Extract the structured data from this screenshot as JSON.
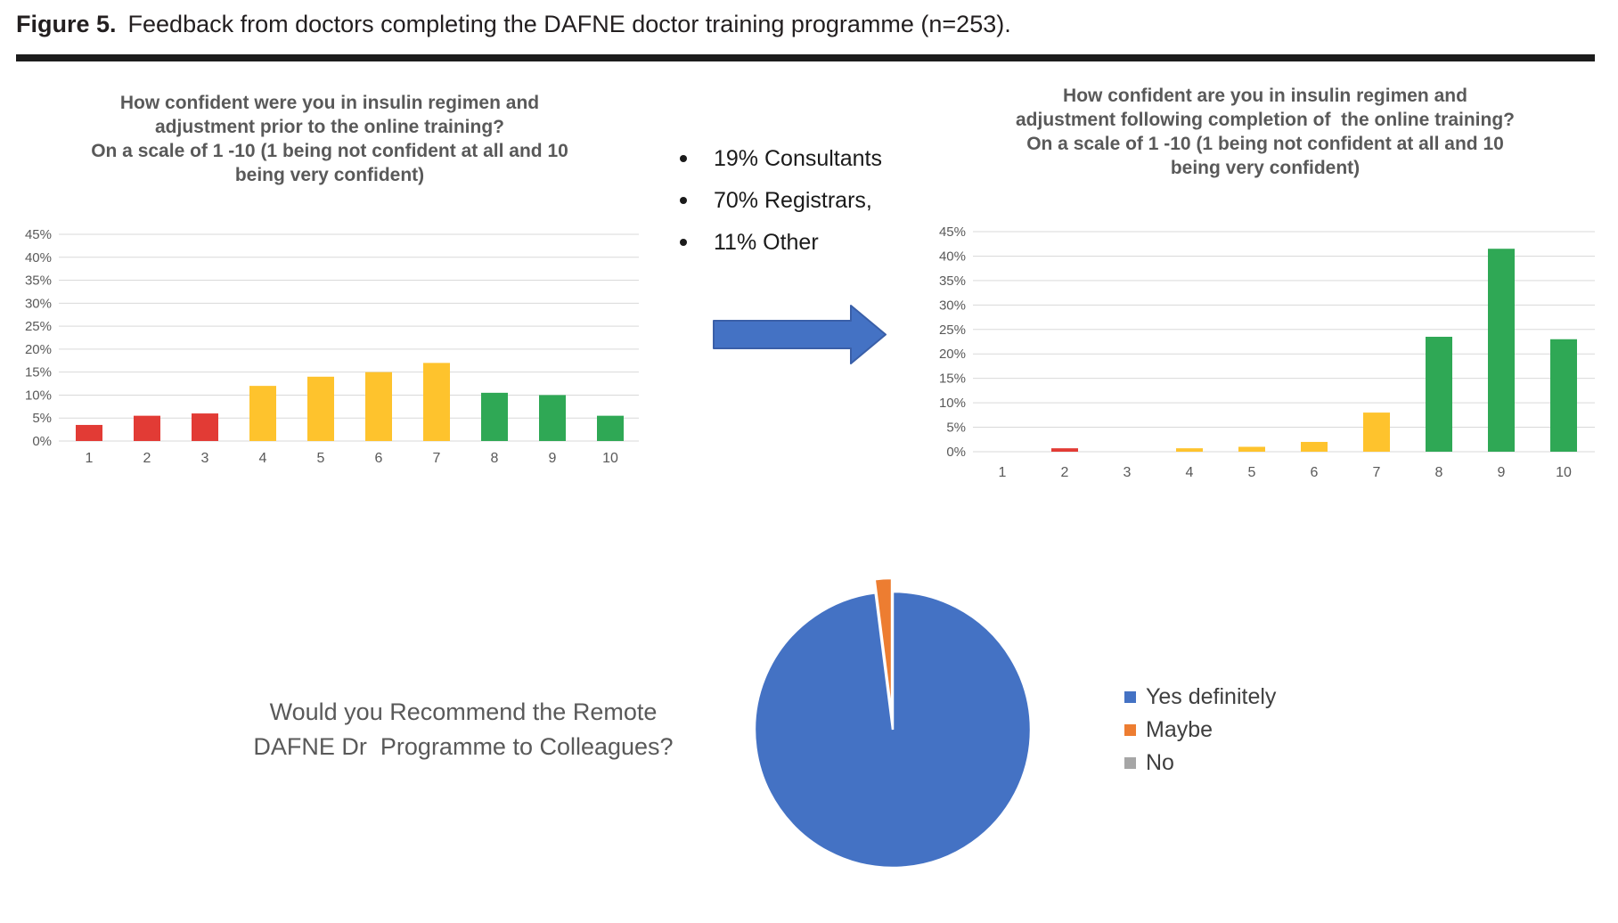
{
  "header": {
    "figure_label": "Figure 5.",
    "caption": "Feedback from doctors completing the DAFNE doctor training programme (n=253)."
  },
  "middle": {
    "bullets": [
      "19% Consultants",
      "70% Registrars,",
      "11% Other"
    ],
    "arrow_color": "#4472C4",
    "arrow_border_color": "#3A5FA8"
  },
  "colors": {
    "low_band_red": "#E23B35",
    "mid_band_yellow": "#FEC32D",
    "high_band_green": "#2FA855",
    "pie_blue": "#4472C4",
    "pie_orange": "#ED7D31",
    "pie_gray": "#A6A6A6",
    "gridline": "#D9D9D9",
    "axis_text": "#595959",
    "title_text": "#595959"
  },
  "chart_data": [
    {
      "type": "bar",
      "title": "How confident were you in insulin regimen and adjustment prior to the online training?\nOn a scale of 1 -10 (1 being not confident at all and 10 being very confident)",
      "title_lines": [
        "How confident were you in insulin regimen and",
        "adjustment prior to the online training?",
        "On a scale of 1 -10 (1 being not confident at all and 10",
        "being very confident)"
      ],
      "categories": [
        "1",
        "2",
        "3",
        "4",
        "5",
        "6",
        "7",
        "8",
        "9",
        "10"
      ],
      "values": [
        3.5,
        5.5,
        6,
        12,
        14,
        15,
        17,
        10.5,
        10,
        5.5
      ],
      "bar_colors": [
        "#E23B35",
        "#E23B35",
        "#E23B35",
        "#FEC32D",
        "#FEC32D",
        "#FEC32D",
        "#FEC32D",
        "#2FA855",
        "#2FA855",
        "#2FA855"
      ],
      "xlabel": "",
      "ylabel": "",
      "ylim": [
        0,
        45
      ],
      "ytick_step": 5,
      "ytick_suffix": "%",
      "grid": true,
      "legend": "none"
    },
    {
      "type": "bar",
      "title": "How confident are you in insulin regimen and adjustment following completion of  the online training?\nOn a scale of 1 -10 (1 being not confident at all and 10 being very confident)",
      "title_lines": [
        "How confident are you in insulin regimen and",
        "adjustment following completion of  the online training?",
        "On a scale of 1 -10 (1 being not confident at all and 10",
        "being very confident)"
      ],
      "categories": [
        "1",
        "2",
        "3",
        "4",
        "5",
        "6",
        "7",
        "8",
        "9",
        "10"
      ],
      "values": [
        0,
        0.7,
        0,
        0.7,
        1,
        2,
        8,
        23.5,
        41.5,
        23
      ],
      "bar_colors": [
        "#E23B35",
        "#E23B35",
        "#E23B35",
        "#FEC32D",
        "#FEC32D",
        "#FEC32D",
        "#FEC32D",
        "#2FA855",
        "#2FA855",
        "#2FA855"
      ],
      "xlabel": "",
      "ylabel": "",
      "ylim": [
        0,
        45
      ],
      "ytick_step": 5,
      "ytick_suffix": "%",
      "grid": true,
      "legend": "none"
    },
    {
      "type": "pie",
      "title": "Would you Recommend the Remote DAFNE Dr  Programme to Colleagues?",
      "title_lines": [
        "Would you Recommend the Remote",
        "DAFNE Dr  Programme to Colleagues?"
      ],
      "labels": [
        "Yes definitely",
        "Maybe",
        "No"
      ],
      "values": [
        98,
        2,
        0
      ],
      "colors": [
        "#4472C4",
        "#ED7D31",
        "#A6A6A6"
      ],
      "legend_position": "right"
    }
  ]
}
